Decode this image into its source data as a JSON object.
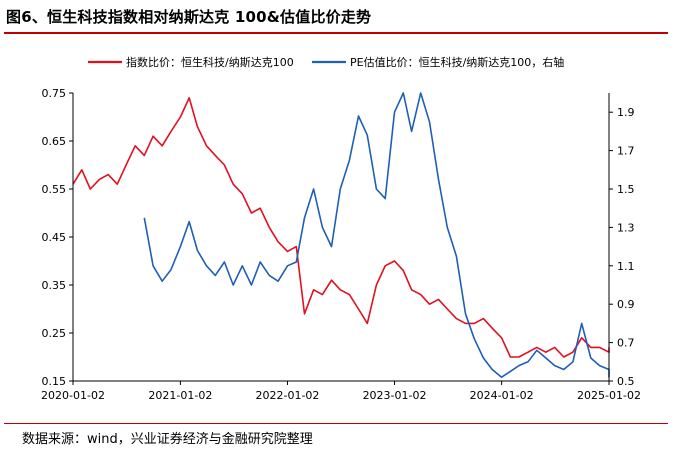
{
  "title": "图6、恒生科技指数相对纳斯达克 100&估值比价走势",
  "source": "数据来源：wind，兴业证券经济与金融研究院整理",
  "chart_data": {
    "type": "line",
    "title": "图6、恒生科技指数相对纳斯达克 100&估值比价走势",
    "xlabel": "",
    "ylabel": "",
    "x_ticks": [
      "2020-01-02",
      "2021-01-02",
      "2022-01-02",
      "2023-01-02",
      "2024-01-02",
      "2025-01-02"
    ],
    "x_range": [
      "2020-01-02",
      "2025-01-02"
    ],
    "y_left": {
      "range": [
        0.15,
        0.75
      ],
      "ticks": [
        0.15,
        0.25,
        0.35,
        0.45,
        0.55,
        0.65,
        0.75
      ]
    },
    "y_right": {
      "range": [
        0.5,
        2.0
      ],
      "ticks": [
        0.5,
        0.7,
        0.9,
        1.1,
        1.3,
        1.5,
        1.7,
        1.9
      ]
    },
    "grid": false,
    "legend_position": "top-center",
    "series": [
      {
        "name": "指数比价：恒生科技/纳斯达克100",
        "axis": "left",
        "color": "#e0101f",
        "points": [
          [
            "2020-01-02",
            0.56
          ],
          [
            "2020-02-01",
            0.59
          ],
          [
            "2020-03-01",
            0.55
          ],
          [
            "2020-04-01",
            0.57
          ],
          [
            "2020-05-01",
            0.58
          ],
          [
            "2020-06-01",
            0.56
          ],
          [
            "2020-07-01",
            0.6
          ],
          [
            "2020-08-01",
            0.64
          ],
          [
            "2020-09-01",
            0.62
          ],
          [
            "2020-10-01",
            0.66
          ],
          [
            "2020-11-01",
            0.64
          ],
          [
            "2020-12-01",
            0.67
          ],
          [
            "2021-01-02",
            0.7
          ],
          [
            "2021-02-01",
            0.74
          ],
          [
            "2021-03-01",
            0.68
          ],
          [
            "2021-04-01",
            0.64
          ],
          [
            "2021-05-01",
            0.62
          ],
          [
            "2021-06-01",
            0.6
          ],
          [
            "2021-07-01",
            0.56
          ],
          [
            "2021-08-01",
            0.54
          ],
          [
            "2021-09-01",
            0.5
          ],
          [
            "2021-10-01",
            0.51
          ],
          [
            "2021-11-01",
            0.47
          ],
          [
            "2021-12-01",
            0.44
          ],
          [
            "2022-01-02",
            0.42
          ],
          [
            "2022-02-01",
            0.43
          ],
          [
            "2022-03-01",
            0.29
          ],
          [
            "2022-04-01",
            0.34
          ],
          [
            "2022-05-01",
            0.33
          ],
          [
            "2022-06-01",
            0.36
          ],
          [
            "2022-07-01",
            0.34
          ],
          [
            "2022-08-01",
            0.33
          ],
          [
            "2022-09-01",
            0.3
          ],
          [
            "2022-10-01",
            0.27
          ],
          [
            "2022-11-01",
            0.35
          ],
          [
            "2022-12-01",
            0.39
          ],
          [
            "2023-01-02",
            0.4
          ],
          [
            "2023-02-01",
            0.38
          ],
          [
            "2023-03-01",
            0.34
          ],
          [
            "2023-04-01",
            0.33
          ],
          [
            "2023-05-01",
            0.31
          ],
          [
            "2023-06-01",
            0.32
          ],
          [
            "2023-07-01",
            0.3
          ],
          [
            "2023-08-01",
            0.28
          ],
          [
            "2023-09-01",
            0.27
          ],
          [
            "2023-10-01",
            0.27
          ],
          [
            "2023-11-01",
            0.28
          ],
          [
            "2023-12-01",
            0.26
          ],
          [
            "2024-01-02",
            0.24
          ],
          [
            "2024-02-01",
            0.2
          ],
          [
            "2024-03-01",
            0.2
          ],
          [
            "2024-04-01",
            0.21
          ],
          [
            "2024-05-01",
            0.22
          ],
          [
            "2024-06-01",
            0.21
          ],
          [
            "2024-07-01",
            0.22
          ],
          [
            "2024-08-01",
            0.2
          ],
          [
            "2024-09-01",
            0.21
          ],
          [
            "2024-10-01",
            0.24
          ],
          [
            "2024-11-01",
            0.22
          ],
          [
            "2024-12-01",
            0.22
          ],
          [
            "2025-01-02",
            0.21
          ],
          [
            "2025-02-01",
            0.22
          ]
        ]
      },
      {
        "name": "PE估值比价：恒生科技/纳斯达克100，右轴",
        "axis": "right",
        "color": "#1f5fb5",
        "points": [
          [
            "2020-09-01",
            1.35
          ],
          [
            "2020-10-01",
            1.1
          ],
          [
            "2020-11-01",
            1.02
          ],
          [
            "2020-12-01",
            1.08
          ],
          [
            "2021-01-02",
            1.2
          ],
          [
            "2021-02-01",
            1.33
          ],
          [
            "2021-03-01",
            1.18
          ],
          [
            "2021-04-01",
            1.1
          ],
          [
            "2021-05-01",
            1.05
          ],
          [
            "2021-06-01",
            1.12
          ],
          [
            "2021-07-01",
            1.0
          ],
          [
            "2021-08-01",
            1.1
          ],
          [
            "2021-09-01",
            1.0
          ],
          [
            "2021-10-01",
            1.12
          ],
          [
            "2021-11-01",
            1.05
          ],
          [
            "2021-12-01",
            1.02
          ],
          [
            "2022-01-02",
            1.1
          ],
          [
            "2022-02-01",
            1.12
          ],
          [
            "2022-03-01",
            1.35
          ],
          [
            "2022-04-01",
            1.5
          ],
          [
            "2022-05-01",
            1.3
          ],
          [
            "2022-06-01",
            1.2
          ],
          [
            "2022-07-01",
            1.5
          ],
          [
            "2022-08-01",
            1.65
          ],
          [
            "2022-09-01",
            1.88
          ],
          [
            "2022-10-01",
            1.78
          ],
          [
            "2022-11-01",
            1.5
          ],
          [
            "2022-12-01",
            1.45
          ],
          [
            "2023-01-02",
            1.9
          ],
          [
            "2023-02-01",
            2.0
          ],
          [
            "2023-03-01",
            1.8
          ],
          [
            "2023-04-01",
            2.0
          ],
          [
            "2023-05-01",
            1.85
          ],
          [
            "2023-06-01",
            1.55
          ],
          [
            "2023-07-01",
            1.3
          ],
          [
            "2023-08-01",
            1.15
          ],
          [
            "2023-09-01",
            0.85
          ],
          [
            "2023-10-01",
            0.72
          ],
          [
            "2023-11-01",
            0.62
          ],
          [
            "2023-12-01",
            0.56
          ],
          [
            "2024-01-02",
            0.52
          ],
          [
            "2024-02-01",
            0.55
          ],
          [
            "2024-03-01",
            0.58
          ],
          [
            "2024-04-01",
            0.6
          ],
          [
            "2024-05-01",
            0.66
          ],
          [
            "2024-06-01",
            0.62
          ],
          [
            "2024-07-01",
            0.58
          ],
          [
            "2024-08-01",
            0.56
          ],
          [
            "2024-09-01",
            0.6
          ],
          [
            "2024-10-01",
            0.8
          ],
          [
            "2024-11-01",
            0.62
          ],
          [
            "2024-12-01",
            0.58
          ],
          [
            "2025-01-02",
            0.56
          ],
          [
            "2025-02-01",
            0.52
          ]
        ]
      }
    ]
  }
}
